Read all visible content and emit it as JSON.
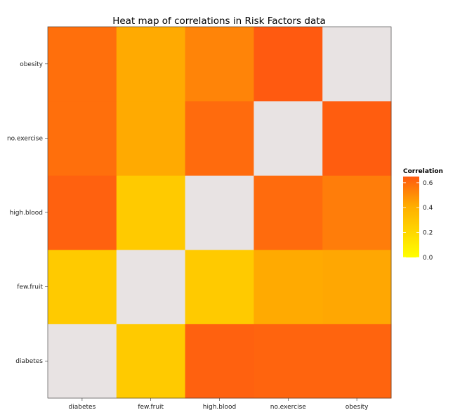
{
  "chart_data": {
    "type": "heatmap",
    "title": "Heat map of correlations in Risk Factors data",
    "xlabel": "",
    "ylabel": "",
    "x_categories": [
      "diabetes",
      "few.fruit",
      "high.blood",
      "no.exercise",
      "obesity"
    ],
    "y_categories": [
      "diabetes",
      "few.fruit",
      "high.blood",
      "no.exercise",
      "obesity"
    ],
    "values": [
      [
        null,
        0.27,
        0.63,
        0.62,
        0.62
      ],
      [
        0.27,
        null,
        0.27,
        0.42,
        0.43
      ],
      [
        0.63,
        0.27,
        null,
        0.6,
        0.55
      ],
      [
        0.59,
        0.42,
        0.6,
        null,
        0.64
      ],
      [
        0.59,
        0.42,
        0.53,
        0.65,
        null
      ]
    ],
    "missing_color": "#e8e3e3",
    "legend": {
      "title": "Correlation",
      "ticks": [
        "0.0",
        "0.2",
        "0.4",
        "0.6"
      ],
      "range": [
        0,
        0.65
      ],
      "color_low": "#ffff00",
      "color_mid": "#ffb000",
      "color_high": "#ff5a10",
      "placement": "right"
    }
  }
}
